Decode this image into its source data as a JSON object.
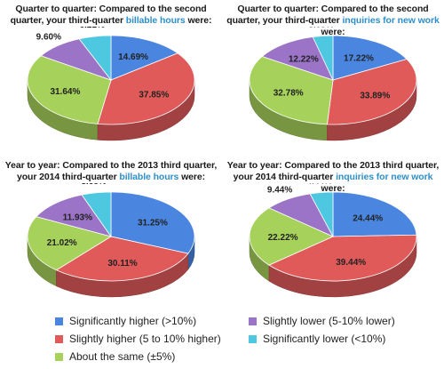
{
  "legend": [
    {
      "key": "sig_higher",
      "label": "Significantly higher (>10%)",
      "color": "#4a86e0"
    },
    {
      "key": "slight_higher",
      "label": "Slightly higher (5 to 10% higher)",
      "color": "#e05a5a"
    },
    {
      "key": "same",
      "label": "About the same (±5%)",
      "color": "#a6d15a"
    },
    {
      "key": "slight_lower",
      "label": "Slightly lower (5-10% lower)",
      "color": "#9b73c7"
    },
    {
      "key": "sig_lower",
      "label": "Significantly lower (<10%)",
      "color": "#4dc8e0"
    }
  ],
  "chart_data": [
    {
      "type": "pie",
      "title_prefix": "Quarter to quarter: Compared to the second quarter, your third-quarter ",
      "title_highlight": "billable hours",
      "title_suffix": " were:",
      "categories": [
        "Significantly higher (>10%)",
        "Slightly higher (5 to 10% higher)",
        "About the same (±5%)",
        "Slightly lower (5-10% lower)",
        "Significantly lower (<10%)"
      ],
      "values": [
        14.69,
        37.85,
        31.64,
        9.6,
        6.21
      ],
      "labels": [
        "14.69%",
        "37.85%",
        "31.64%",
        "9.60%",
        "6.21%"
      ]
    },
    {
      "type": "pie",
      "title_prefix": "Quarter to quarter: Compared to the second quarter, your third-quarter ",
      "title_highlight": "inquiries for new work",
      "title_suffix": " were:",
      "categories": [
        "Significantly higher (>10%)",
        "Slightly higher (5 to 10% higher)",
        "About the same (±5%)",
        "Slightly lower (5-10% lower)",
        "Significantly lower (<10%)"
      ],
      "values": [
        17.22,
        33.89,
        32.78,
        12.22,
        3.89
      ],
      "labels": [
        "17.22%",
        "33.89%",
        "32.78%",
        "12.22%",
        "3.89%"
      ]
    },
    {
      "type": "pie",
      "title_prefix": "Year to year: Compared to the 2013 third quarter, your 2014 third-quarter ",
      "title_highlight": "billable hours",
      "title_suffix": " were:",
      "categories": [
        "Significantly higher (>10%)",
        "Slightly higher (5 to 10% higher)",
        "About the same (±5%)",
        "Slightly lower (5-10% lower)",
        "Significantly lower (<10%)"
      ],
      "values": [
        31.25,
        30.11,
        21.02,
        11.93,
        5.68
      ],
      "labels": [
        "31.25%",
        "30.11%",
        "21.02%",
        "11.93%",
        "5.68%"
      ]
    },
    {
      "type": "pie",
      "title_prefix": "Year to year: Compared to the 2013 third quarter, your 2014 third-quarter ",
      "title_highlight": "inquiries for new work",
      "title_suffix": " were:",
      "categories": [
        "Significantly higher (>10%)",
        "Slightly higher (5 to 10% higher)",
        "About the same (±5%)",
        "Slightly lower (5-10% lower)",
        "Significantly lower (<10%)"
      ],
      "values": [
        24.44,
        39.44,
        22.22,
        9.44,
        4.44
      ],
      "labels": [
        "24.44%",
        "39.44%",
        "22.22%",
        "9.44%",
        "4.44%"
      ]
    }
  ]
}
